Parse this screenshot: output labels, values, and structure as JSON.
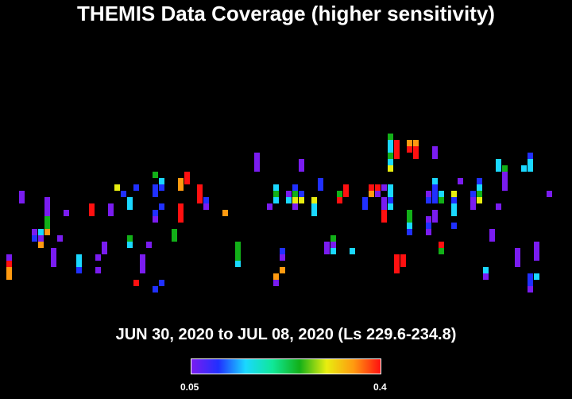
{
  "chart_data": {
    "type": "heatmap",
    "title": "THEMIS Data Coverage (higher sensitivity)",
    "subtitle": "JUN 30, 2020 to JUL 08, 2020 (Ls 229.6-234.8)",
    "colorbar": {
      "min_label": "0.05",
      "max_label": "0.4",
      "range": [
        0.05,
        0.4
      ],
      "colormap": "rainbow (violet to red)",
      "colors": [
        "#7a1cf0",
        "#2030ff",
        "#1ad8ff",
        "#10e898",
        "#12b018",
        "#e8ee10",
        "#ff9a10",
        "#ff1010"
      ]
    },
    "grid": {
      "columns": 90,
      "rows": 62
    },
    "columns": [
      {
        "col": 1,
        "cells": [
          [
            40,
            "violet"
          ],
          [
            41,
            "red"
          ],
          [
            42,
            "orange"
          ],
          [
            43,
            "orange"
          ]
        ]
      },
      {
        "col": 3,
        "cells": [
          [
            30,
            "violet"
          ],
          [
            31,
            "violet"
          ]
        ]
      },
      {
        "col": 5,
        "cells": [
          [
            36,
            "violet"
          ],
          [
            37,
            "blue"
          ]
        ]
      },
      {
        "col": 6,
        "cells": [
          [
            36,
            "cyan"
          ],
          [
            37,
            "violet"
          ],
          [
            38,
            "orange"
          ]
        ]
      },
      {
        "col": 7,
        "cells": [
          [
            31,
            "violet"
          ],
          [
            32,
            "violet"
          ],
          [
            33,
            "violet"
          ],
          [
            34,
            "green"
          ],
          [
            35,
            "green"
          ],
          [
            36,
            "orange"
          ]
        ]
      },
      {
        "col": 8,
        "cells": [
          [
            39,
            "violet"
          ],
          [
            40,
            "violet"
          ],
          [
            41,
            "violet"
          ]
        ]
      },
      {
        "col": 9,
        "cells": [
          [
            37,
            "violet"
          ]
        ]
      },
      {
        "col": 10,
        "cells": [
          [
            33,
            "violet"
          ]
        ]
      },
      {
        "col": 12,
        "cells": [
          [
            40,
            "cyan"
          ],
          [
            41,
            "cyan"
          ],
          [
            42,
            "blue"
          ]
        ]
      },
      {
        "col": 14,
        "cells": [
          [
            32,
            "red"
          ],
          [
            33,
            "red"
          ]
        ]
      },
      {
        "col": 15,
        "cells": [
          [
            40,
            "violet"
          ],
          [
            42,
            "violet"
          ]
        ]
      },
      {
        "col": 16,
        "cells": [
          [
            38,
            "violet"
          ],
          [
            39,
            "violet"
          ]
        ]
      },
      {
        "col": 17,
        "cells": [
          [
            32,
            "violet"
          ],
          [
            33,
            "violet"
          ]
        ]
      },
      {
        "col": 18,
        "cells": [
          [
            29,
            "yellow"
          ]
        ]
      },
      {
        "col": 19,
        "cells": [
          [
            30,
            "blue"
          ]
        ]
      },
      {
        "col": 20,
        "cells": [
          [
            31,
            "cyan"
          ],
          [
            32,
            "cyan"
          ],
          [
            37,
            "green"
          ],
          [
            38,
            "cyan"
          ]
        ]
      },
      {
        "col": 21,
        "cells": [
          [
            29,
            "blue"
          ],
          [
            44,
            "red"
          ]
        ]
      },
      {
        "col": 22,
        "cells": [
          [
            40,
            "violet"
          ],
          [
            41,
            "violet"
          ],
          [
            42,
            "violet"
          ]
        ]
      },
      {
        "col": 23,
        "cells": [
          [
            38,
            "violet"
          ]
        ]
      },
      {
        "col": 24,
        "cells": [
          [
            27,
            "green"
          ],
          [
            29,
            "blue"
          ],
          [
            30,
            "blue"
          ],
          [
            33,
            "blue"
          ],
          [
            34,
            "violet"
          ],
          [
            45,
            "blue"
          ]
        ]
      },
      {
        "col": 25,
        "cells": [
          [
            28,
            "cyan"
          ],
          [
            29,
            "blue"
          ],
          [
            32,
            "blue"
          ],
          [
            44,
            "blue"
          ]
        ]
      },
      {
        "col": 27,
        "cells": [
          [
            36,
            "green"
          ],
          [
            37,
            "green"
          ]
        ]
      },
      {
        "col": 28,
        "cells": [
          [
            28,
            "orange"
          ],
          [
            29,
            "orange"
          ],
          [
            32,
            "red"
          ],
          [
            33,
            "red"
          ],
          [
            34,
            "red"
          ]
        ]
      },
      {
        "col": 29,
        "cells": [
          [
            27,
            "red"
          ],
          [
            28,
            "red"
          ]
        ]
      },
      {
        "col": 31,
        "cells": [
          [
            29,
            "red"
          ],
          [
            30,
            "red"
          ],
          [
            31,
            "red"
          ]
        ]
      },
      {
        "col": 32,
        "cells": [
          [
            31,
            "blue"
          ],
          [
            32,
            "violet"
          ]
        ]
      },
      {
        "col": 35,
        "cells": [
          [
            33,
            "orange"
          ]
        ]
      },
      {
        "col": 37,
        "cells": [
          [
            38,
            "green"
          ],
          [
            39,
            "green"
          ],
          [
            40,
            "green"
          ],
          [
            41,
            "cyan"
          ]
        ]
      },
      {
        "col": 40,
        "cells": [
          [
            24,
            "violet"
          ],
          [
            25,
            "violet"
          ],
          [
            26,
            "violet"
          ]
        ]
      },
      {
        "col": 42,
        "cells": [
          [
            32,
            "violet"
          ]
        ]
      },
      {
        "col": 43,
        "cells": [
          [
            29,
            "cyan"
          ],
          [
            30,
            "green"
          ],
          [
            31,
            "cyan"
          ],
          [
            43,
            "orange"
          ],
          [
            44,
            "violet"
          ]
        ]
      },
      {
        "col": 44,
        "cells": [
          [
            39,
            "blue"
          ],
          [
            40,
            "violet"
          ],
          [
            42,
            "orange"
          ]
        ]
      },
      {
        "col": 45,
        "cells": [
          [
            30,
            "violet"
          ],
          [
            31,
            "cyan"
          ]
        ]
      },
      {
        "col": 46,
        "cells": [
          [
            29,
            "blue"
          ],
          [
            30,
            "green"
          ],
          [
            31,
            "yellow"
          ],
          [
            32,
            "violet"
          ]
        ]
      },
      {
        "col": 47,
        "cells": [
          [
            25,
            "violet"
          ],
          [
            26,
            "violet"
          ],
          [
            30,
            "blue"
          ],
          [
            31,
            "yellow"
          ]
        ]
      },
      {
        "col": 49,
        "cells": [
          [
            31,
            "yellow"
          ],
          [
            32,
            "cyan"
          ],
          [
            33,
            "cyan"
          ]
        ]
      },
      {
        "col": 50,
        "cells": [
          [
            28,
            "blue"
          ],
          [
            29,
            "blue"
          ]
        ]
      },
      {
        "col": 51,
        "cells": [
          [
            38,
            "violet"
          ],
          [
            39,
            "violet"
          ]
        ]
      },
      {
        "col": 52,
        "cells": [
          [
            37,
            "green"
          ],
          [
            38,
            "violet"
          ],
          [
            39,
            "cyan"
          ]
        ]
      },
      {
        "col": 53,
        "cells": [
          [
            30,
            "green"
          ],
          [
            31,
            "red"
          ]
        ]
      },
      {
        "col": 54,
        "cells": [
          [
            29,
            "red"
          ],
          [
            30,
            "red"
          ]
        ]
      },
      {
        "col": 55,
        "cells": [
          [
            39,
            "cyan"
          ]
        ]
      },
      {
        "col": 57,
        "cells": [
          [
            31,
            "blue"
          ],
          [
            32,
            "blue"
          ]
        ]
      },
      {
        "col": 58,
        "cells": [
          [
            29,
            "red"
          ],
          [
            30,
            "orange"
          ]
        ]
      },
      {
        "col": 59,
        "cells": [
          [
            29,
            "red"
          ],
          [
            30,
            "violet"
          ]
        ]
      },
      {
        "col": 60,
        "cells": [
          [
            29,
            "violet"
          ],
          [
            31,
            "violet"
          ],
          [
            32,
            "violet"
          ],
          [
            33,
            "red"
          ],
          [
            34,
            "red"
          ]
        ]
      },
      {
        "col": 61,
        "cells": [
          [
            21,
            "green"
          ],
          [
            22,
            "cyan"
          ],
          [
            23,
            "cyan"
          ],
          [
            24,
            "green"
          ],
          [
            25,
            "cyan"
          ],
          [
            26,
            "yellow"
          ],
          [
            29,
            "cyan"
          ],
          [
            30,
            "cyan"
          ],
          [
            31,
            "blue"
          ],
          [
            32,
            "cyan"
          ]
        ]
      },
      {
        "col": 62,
        "cells": [
          [
            22,
            "red"
          ],
          [
            23,
            "red"
          ],
          [
            24,
            "red"
          ],
          [
            40,
            "red"
          ],
          [
            41,
            "red"
          ],
          [
            42,
            "red"
          ]
        ]
      },
      {
        "col": 63,
        "cells": [
          [
            40,
            "red"
          ],
          [
            41,
            "red"
          ]
        ]
      },
      {
        "col": 64,
        "cells": [
          [
            22,
            "orange"
          ],
          [
            23,
            "red"
          ],
          [
            33,
            "green"
          ],
          [
            34,
            "green"
          ],
          [
            35,
            "cyan"
          ],
          [
            36,
            "blue"
          ]
        ]
      },
      {
        "col": 65,
        "cells": [
          [
            22,
            "orange"
          ],
          [
            23,
            "red"
          ],
          [
            24,
            "red"
          ]
        ]
      },
      {
        "col": 67,
        "cells": [
          [
            30,
            "violet"
          ],
          [
            31,
            "blue"
          ],
          [
            34,
            "violet"
          ],
          [
            35,
            "blue"
          ],
          [
            36,
            "violet"
          ]
        ]
      },
      {
        "col": 68,
        "cells": [
          [
            23,
            "violet"
          ],
          [
            24,
            "violet"
          ],
          [
            28,
            "cyan"
          ],
          [
            29,
            "blue"
          ],
          [
            30,
            "blue"
          ],
          [
            31,
            "blue"
          ],
          [
            33,
            "violet"
          ],
          [
            34,
            "violet"
          ]
        ]
      },
      {
        "col": 69,
        "cells": [
          [
            30,
            "cyan"
          ],
          [
            31,
            "green"
          ],
          [
            38,
            "red"
          ],
          [
            39,
            "green"
          ]
        ]
      },
      {
        "col": 71,
        "cells": [
          [
            30,
            "yellow"
          ],
          [
            31,
            "blue"
          ],
          [
            32,
            "cyan"
          ],
          [
            33,
            "cyan"
          ],
          [
            35,
            "blue"
          ]
        ]
      },
      {
        "col": 72,
        "cells": [
          [
            28,
            "violet"
          ]
        ]
      },
      {
        "col": 74,
        "cells": [
          [
            30,
            "blue"
          ],
          [
            31,
            "violet"
          ],
          [
            32,
            "violet"
          ]
        ]
      },
      {
        "col": 75,
        "cells": [
          [
            28,
            "blue"
          ],
          [
            29,
            "cyan"
          ],
          [
            30,
            "green"
          ],
          [
            31,
            "yellow"
          ]
        ]
      },
      {
        "col": 76,
        "cells": [
          [
            42,
            "cyan"
          ],
          [
            43,
            "violet"
          ]
        ]
      },
      {
        "col": 77,
        "cells": [
          [
            36,
            "violet"
          ],
          [
            37,
            "violet"
          ]
        ]
      },
      {
        "col": 78,
        "cells": [
          [
            25,
            "cyan"
          ],
          [
            26,
            "cyan"
          ],
          [
            32,
            "violet"
          ]
        ]
      },
      {
        "col": 79,
        "cells": [
          [
            26,
            "green"
          ],
          [
            27,
            "violet"
          ],
          [
            28,
            "violet"
          ],
          [
            29,
            "violet"
          ]
        ]
      },
      {
        "col": 81,
        "cells": [
          [
            39,
            "violet"
          ],
          [
            40,
            "violet"
          ],
          [
            41,
            "violet"
          ]
        ]
      },
      {
        "col": 82,
        "cells": [
          [
            26,
            "cyan"
          ]
        ]
      },
      {
        "col": 83,
        "cells": [
          [
            24,
            "blue"
          ],
          [
            25,
            "cyan"
          ],
          [
            26,
            "cyan"
          ],
          [
            43,
            "blue"
          ],
          [
            44,
            "blue"
          ],
          [
            45,
            "violet"
          ]
        ]
      },
      {
        "col": 84,
        "cells": [
          [
            38,
            "violet"
          ],
          [
            39,
            "violet"
          ],
          [
            40,
            "violet"
          ],
          [
            43,
            "cyan"
          ]
        ]
      },
      {
        "col": 86,
        "cells": [
          [
            30,
            "violet"
          ]
        ]
      }
    ]
  }
}
